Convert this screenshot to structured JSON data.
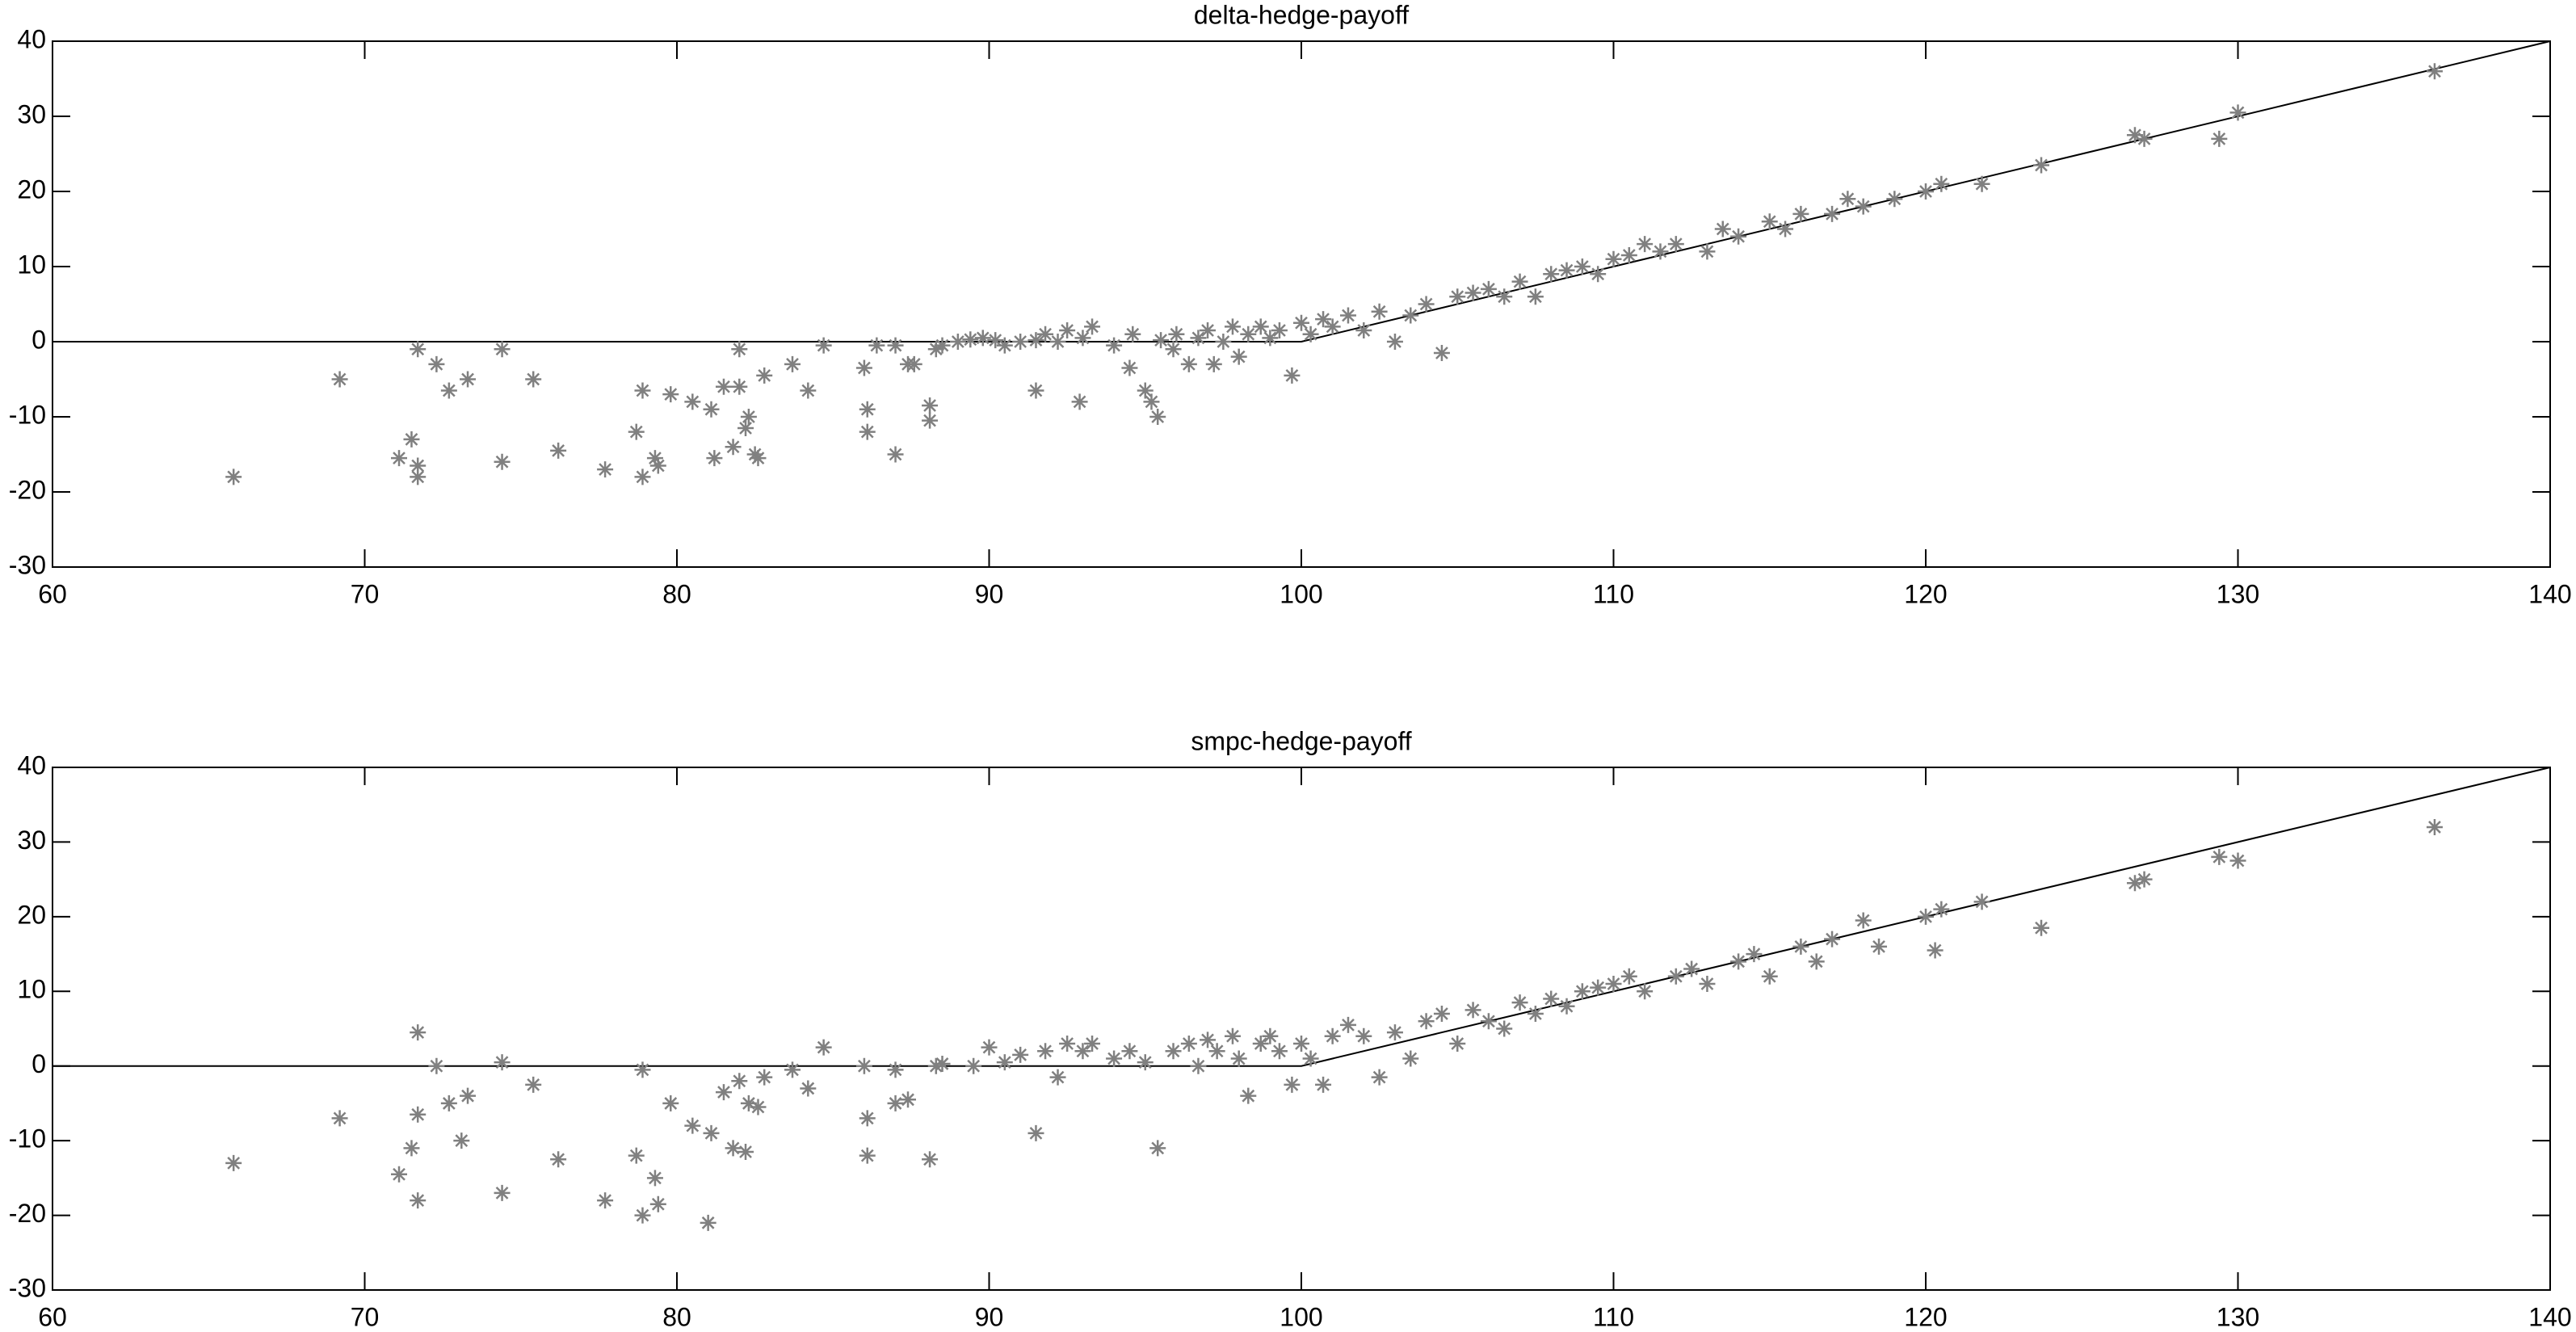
{
  "chart_data": [
    {
      "type": "scatter",
      "title": "delta-hedge-payoff",
      "xlim": [
        60,
        140
      ],
      "xticks": [
        60,
        70,
        80,
        90,
        100,
        110,
        120,
        130,
        140
      ],
      "ylim": [
        -30,
        40
      ],
      "yticks": [
        -30,
        -20,
        -10,
        0,
        10,
        20,
        30,
        40
      ],
      "series": [
        {
          "type": "line",
          "color": "#000000",
          "x": [
            60,
            100,
            140
          ],
          "values": [
            0,
            0,
            40
          ]
        },
        {
          "type": "scatter",
          "marker": "*",
          "color": "#808080",
          "x": [
            65.8,
            69.2,
            71.1,
            71.5,
            71.7,
            71.7,
            71.7,
            72.3,
            72.7,
            73.3,
            74.4,
            74.4,
            75.4,
            76.2,
            77.7,
            78.7,
            78.9,
            78.9,
            79.3,
            79.4,
            79.8,
            80.5,
            81.2,
            81.1,
            81.5,
            81.8,
            82,
            82,
            82.2,
            82.3,
            82.5,
            82.6,
            82.8,
            83.7,
            84.2,
            84.7,
            86,
            86.1,
            86.1,
            86.4,
            87,
            87,
            87.4,
            87.6,
            88.1,
            88.1,
            88.3,
            88.5,
            89,
            89.4,
            89.8,
            90.2,
            90.5,
            91,
            91.5,
            91.5,
            91.8,
            92.2,
            92.5,
            92.9,
            93,
            93.3,
            94,
            94.5,
            94.6,
            95,
            95.2,
            95.4,
            95.5,
            95.9,
            96,
            96.4,
            96.7,
            97,
            97.2,
            97.5,
            97.8,
            98,
            98.3,
            98.7,
            99,
            99.3,
            99.7,
            100,
            100.3,
            100.7,
            101,
            101.5,
            102,
            102.5,
            103,
            103.5,
            104,
            104.5,
            105,
            105.5,
            106,
            106.5,
            107,
            107.5,
            108,
            108.5,
            109,
            109.5,
            110,
            110.5,
            111,
            111.5,
            112,
            113,
            113.5,
            114,
            115,
            115.5,
            116,
            117,
            117.5,
            118,
            119,
            120,
            120.5,
            121.8,
            123.7,
            126.7,
            127,
            129.4,
            130,
            136.3
          ],
          "values": [
            -18,
            -5,
            -15.5,
            -13,
            -16.5,
            -18,
            -1,
            -3,
            -6.5,
            -5,
            -1,
            -16,
            -5,
            -14.5,
            -17,
            -12,
            -6.5,
            -18,
            -15.5,
            -16.5,
            -7,
            -8,
            -15.5,
            -9,
            -6,
            -14,
            -1,
            -6,
            -11.5,
            -10,
            -15,
            -15.5,
            -4.5,
            -3,
            -6.5,
            -0.5,
            -3.5,
            -9,
            -12,
            -0.5,
            -0.5,
            -15,
            -3,
            -3,
            -8.5,
            -10.5,
            -1,
            -0.5,
            0,
            0.3,
            0.5,
            0.2,
            -0.5,
            0,
            -6.5,
            0.2,
            1,
            0,
            1.5,
            -8,
            0.5,
            2,
            -0.5,
            -3.5,
            1,
            -6.5,
            -8,
            -10,
            0.2,
            -1,
            1,
            -3,
            0.5,
            1.5,
            -3,
            0,
            2,
            -2,
            1,
            2,
            0.5,
            1.5,
            -4.5,
            2.5,
            1,
            3,
            2,
            3.5,
            1.5,
            4,
            0,
            3.5,
            5,
            -1.5,
            6,
            6.5,
            7,
            6,
            8,
            6,
            9,
            9.5,
            10,
            9,
            11,
            11.5,
            13,
            12,
            13,
            12,
            15,
            14,
            16,
            15,
            17,
            17,
            19,
            18,
            19,
            20,
            21,
            21,
            23.5,
            27.5,
            27,
            27,
            30.5,
            36
          ]
        }
      ]
    },
    {
      "type": "scatter",
      "title": "smpc-hedge-payoff",
      "xlim": [
        60,
        140
      ],
      "xticks": [
        60,
        70,
        80,
        90,
        100,
        110,
        120,
        130,
        140
      ],
      "ylim": [
        -30,
        40
      ],
      "yticks": [
        -30,
        -20,
        -10,
        0,
        10,
        20,
        30,
        40
      ],
      "series": [
        {
          "type": "line",
          "color": "#000000",
          "x": [
            60,
            100,
            140
          ],
          "values": [
            0,
            0,
            40
          ]
        },
        {
          "type": "scatter",
          "marker": "*",
          "color": "#808080",
          "x": [
            65.8,
            69.2,
            71.1,
            71.5,
            71.7,
            71.7,
            71.7,
            72.3,
            72.7,
            73.1,
            73.3,
            74.4,
            74.4,
            75.4,
            76.2,
            77.7,
            78.7,
            78.9,
            78.9,
            79.3,
            79.4,
            79.8,
            80.5,
            81,
            81.1,
            81.5,
            81.8,
            82,
            82.2,
            82.3,
            82.6,
            82.8,
            83.7,
            84.2,
            84.7,
            86,
            86.1,
            86.1,
            87,
            87,
            87.4,
            88.1,
            88.3,
            88.5,
            89.5,
            90,
            90.5,
            91,
            91.5,
            91.8,
            92.2,
            92.5,
            93,
            93.3,
            94,
            94.5,
            95,
            95.4,
            95.9,
            96.4,
            96.7,
            97,
            97.3,
            97.8,
            98,
            98.3,
            98.7,
            99,
            99.3,
            99.7,
            100,
            100.3,
            100.7,
            101,
            101.5,
            102,
            102.5,
            103,
            103.5,
            104,
            104.5,
            105,
            105.5,
            106,
            106.5,
            107,
            107.5,
            108,
            108.5,
            109,
            109.5,
            110,
            110.5,
            111,
            112,
            112.5,
            113,
            114,
            114.5,
            115,
            116,
            116.5,
            117,
            118,
            118.5,
            120,
            120.3,
            120.5,
            121.8,
            123.7,
            126.7,
            127,
            129.4,
            130,
            136.3
          ],
          "values": [
            -13,
            -7,
            -14.5,
            -11,
            -18,
            4.5,
            -6.5,
            0,
            -5,
            -10,
            -4,
            0.5,
            -17,
            -2.5,
            -12.5,
            -18,
            -12,
            -0.5,
            -20,
            -15,
            -18.5,
            -5,
            -8,
            -21,
            -9,
            -3.5,
            -11,
            -2,
            -11.5,
            -5,
            -5.5,
            -1.5,
            -0.5,
            -3,
            2.5,
            0,
            -7,
            -12,
            -0.5,
            -5,
            -4.5,
            -12.5,
            0,
            0.3,
            0,
            2.5,
            0.5,
            1.5,
            -9,
            2,
            -1.5,
            3,
            2,
            3,
            1,
            2,
            0.5,
            -11,
            2,
            3,
            0,
            3.5,
            2,
            4,
            1,
            -4,
            3,
            4,
            2,
            -2.5,
            3,
            1,
            -2.5,
            4,
            5.5,
            4,
            -1.5,
            4.5,
            1,
            6,
            7,
            3,
            7.5,
            6,
            5,
            8.5,
            7,
            9,
            8,
            10,
            10.5,
            11,
            12,
            10,
            12,
            13,
            11,
            14,
            15,
            12,
            16,
            14,
            17,
            19.5,
            16,
            20,
            15.5,
            21,
            22,
            18.5,
            24.5,
            25,
            28,
            27.5,
            32
          ]
        }
      ]
    }
  ]
}
